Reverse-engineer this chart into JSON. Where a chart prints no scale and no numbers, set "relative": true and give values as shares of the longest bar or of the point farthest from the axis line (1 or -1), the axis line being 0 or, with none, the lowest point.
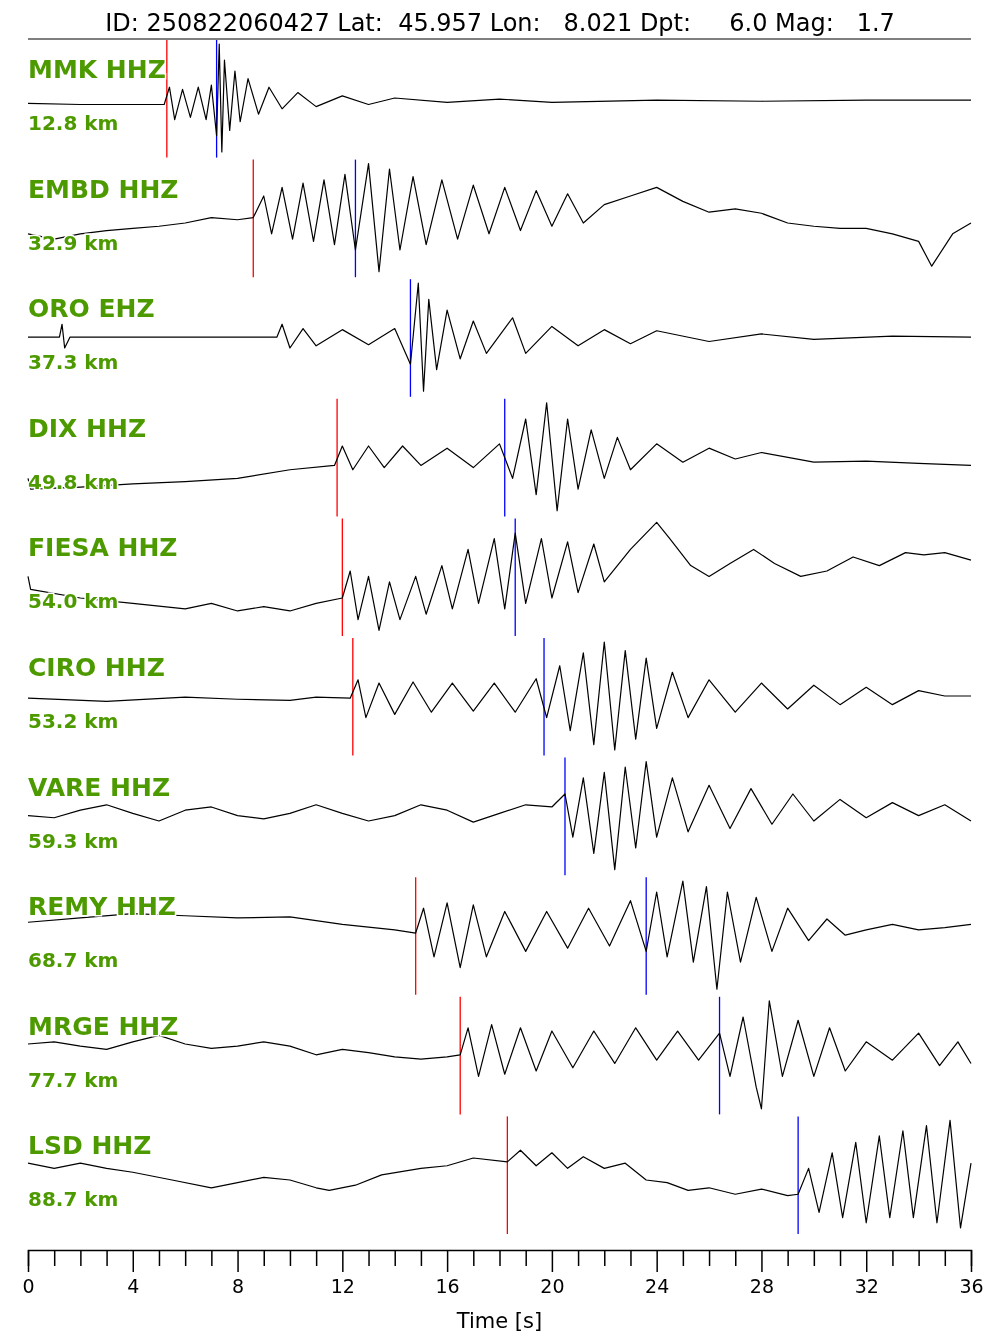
{
  "chart_data": [
    {
      "type": "line",
      "title": "ID: 250822060427 Lat:  45.957 Lon:   8.021 Dpt:     6.0 Mag:   1.7",
      "annotations": [
        "MMK HHZ",
        "12.8 km"
      ],
      "relative": true,
      "xlim": [
        0,
        36
      ],
      "tick_labels": false,
      "ref_lines": [
        {
          "axis": "x",
          "value": 5.3,
          "color": "#ff0000"
        },
        {
          "axis": "x",
          "value": 7.2,
          "color": "#0000ff"
        }
      ],
      "series": [
        {
          "color": "#000000",
          "x": [
            0,
            2,
            4,
            5.2,
            5.4,
            5.6,
            5.9,
            6.2,
            6.5,
            6.8,
            7.0,
            7.2,
            7.3,
            7.4,
            7.5,
            7.7,
            7.9,
            8.1,
            8.4,
            8.8,
            9.2,
            9.7,
            10.3,
            11,
            12,
            13,
            14,
            16,
            18,
            20,
            24,
            28,
            32,
            36
          ],
          "values": [
            0.45,
            0.44,
            0.44,
            0.44,
            0.6,
            0.3,
            0.58,
            0.32,
            0.6,
            0.3,
            0.62,
            0.15,
            1,
            0,
            0.85,
            0.2,
            0.75,
            0.28,
            0.68,
            0.35,
            0.6,
            0.4,
            0.55,
            0.42,
            0.52,
            0.44,
            0.5,
            0.46,
            0.49,
            0.46,
            0.48,
            0.47,
            0.48,
            0.48
          ]
        }
      ]
    },
    {
      "type": "line",
      "annotations": [
        "EMBD HHZ",
        "32.9 km"
      ],
      "relative": true,
      "xlim": [
        0,
        36
      ],
      "tick_labels": false,
      "ref_lines": [
        {
          "axis": "x",
          "value": 8.6,
          "color": "#ff0000"
        },
        {
          "axis": "x",
          "value": 12.5,
          "color": "#0000ff"
        }
      ],
      "series": [
        {
          "color": "#000000",
          "x": [
            0,
            1,
            2,
            3,
            4,
            5,
            6,
            7,
            8,
            8.6,
            9,
            9.3,
            9.7,
            10.1,
            10.5,
            10.9,
            11.3,
            11.7,
            12.1,
            12.5,
            13,
            13.4,
            13.8,
            14.2,
            14.7,
            15.2,
            15.8,
            16.4,
            17,
            17.6,
            18.2,
            18.8,
            19.4,
            20,
            20.6,
            21.2,
            22,
            23,
            24,
            25,
            26,
            27,
            28,
            29,
            30,
            31,
            32,
            33,
            34,
            34.5,
            35.3,
            36
          ],
          "values": [
            0.35,
            0.3,
            0.35,
            0.38,
            0.4,
            0.42,
            0.45,
            0.5,
            0.48,
            0.5,
            0.7,
            0.35,
            0.78,
            0.3,
            0.82,
            0.28,
            0.85,
            0.25,
            0.9,
            0.2,
            1,
            0,
            0.95,
            0.2,
            0.88,
            0.25,
            0.85,
            0.3,
            0.8,
            0.35,
            0.78,
            0.38,
            0.75,
            0.42,
            0.72,
            0.45,
            0.62,
            0.7,
            0.78,
            0.65,
            0.55,
            0.58,
            0.54,
            0.45,
            0.42,
            0.4,
            0.4,
            0.35,
            0.28,
            0.05,
            0.35,
            0.45
          ]
        }
      ]
    },
    {
      "type": "line",
      "annotations": [
        "ORO EHZ",
        "37.3 km"
      ],
      "relative": true,
      "xlim": [
        0,
        36
      ],
      "tick_labels": false,
      "ref_lines": [
        {
          "axis": "x",
          "value": 14.6,
          "color": "#0000ff"
        }
      ],
      "series": [
        {
          "color": "#000000",
          "x": [
            0,
            1.2,
            1.3,
            1.4,
            1.6,
            4,
            9.5,
            9.7,
            10,
            10.5,
            11,
            12,
            13,
            14,
            14.6,
            14.9,
            15.1,
            15.3,
            15.6,
            16,
            16.5,
            17,
            17.5,
            18.5,
            19,
            20,
            21,
            22,
            23,
            24,
            26,
            28,
            30,
            33,
            36
          ],
          "values": [
            0.5,
            0.5,
            0.62,
            0.4,
            0.5,
            0.5,
            0.5,
            0.62,
            0.4,
            0.58,
            0.42,
            0.57,
            0.43,
            0.58,
            0.25,
            1,
            0,
            0.85,
            0.2,
            0.75,
            0.3,
            0.65,
            0.35,
            0.68,
            0.35,
            0.6,
            0.42,
            0.57,
            0.44,
            0.56,
            0.46,
            0.53,
            0.48,
            0.51,
            0.5
          ]
        }
      ]
    },
    {
      "type": "line",
      "annotations": [
        "DIX HHZ",
        "49.8 km"
      ],
      "relative": true,
      "xlim": [
        0,
        36
      ],
      "tick_labels": false,
      "ref_lines": [
        {
          "axis": "x",
          "value": 11.8,
          "color": "#ff0000"
        },
        {
          "axis": "x",
          "value": 18.2,
          "color": "#0000ff"
        }
      ],
      "series": [
        {
          "color": "#000000",
          "x": [
            0,
            0.1,
            2,
            4,
            6,
            8,
            10,
            11.7,
            12,
            12.4,
            13,
            13.6,
            14.3,
            15,
            16,
            17,
            18,
            18.5,
            19,
            19.4,
            19.8,
            20.2,
            20.6,
            21,
            21.5,
            22,
            22.5,
            23,
            24,
            25,
            26,
            27,
            28,
            30,
            32,
            34,
            36
          ],
          "values": [
            0.3,
            0.2,
            0.22,
            0.25,
            0.27,
            0.3,
            0.38,
            0.42,
            0.6,
            0.38,
            0.6,
            0.4,
            0.6,
            0.42,
            0.58,
            0.4,
            0.62,
            0.3,
            0.85,
            0.15,
            1,
            0,
            0.85,
            0.2,
            0.75,
            0.3,
            0.68,
            0.38,
            0.62,
            0.45,
            0.58,
            0.48,
            0.54,
            0.45,
            0.46,
            0.44,
            0.42
          ]
        }
      ]
    },
    {
      "type": "line",
      "annotations": [
        "FIESA HHZ",
        "54.0 km"
      ],
      "relative": true,
      "xlim": [
        0,
        36
      ],
      "tick_labels": false,
      "ref_lines": [
        {
          "axis": "x",
          "value": 12,
          "color": "#ff0000"
        },
        {
          "axis": "x",
          "value": 18.6,
          "color": "#0000ff"
        }
      ],
      "series": [
        {
          "color": "#000000",
          "x": [
            0,
            0.1,
            2,
            4,
            6,
            7,
            8,
            9,
            10,
            11,
            12,
            12.3,
            12.6,
            13,
            13.4,
            13.8,
            14.2,
            14.8,
            15.2,
            15.8,
            16.2,
            16.8,
            17.2,
            17.8,
            18.2,
            18.6,
            19,
            19.6,
            20,
            20.6,
            21,
            21.6,
            22,
            23,
            24,
            24.5,
            25.3,
            26,
            26.8,
            27.7,
            28.5,
            29.5,
            30.5,
            31.5,
            32.5,
            33.5,
            34.2,
            35,
            36
          ],
          "values": [
            0.5,
            0.38,
            0.3,
            0.25,
            0.2,
            0.25,
            0.18,
            0.22,
            0.18,
            0.25,
            0.3,
            0.55,
            0.1,
            0.5,
            0,
            0.45,
            0.1,
            0.5,
            0.15,
            0.6,
            0.2,
            0.75,
            0.25,
            0.85,
            0.2,
            0.9,
            0.25,
            0.85,
            0.3,
            0.82,
            0.35,
            0.8,
            0.45,
            0.75,
            1,
            0.85,
            0.6,
            0.5,
            0.62,
            0.75,
            0.62,
            0.5,
            0.55,
            0.68,
            0.6,
            0.72,
            0.7,
            0.72,
            0.65
          ]
        }
      ]
    },
    {
      "type": "line",
      "annotations": [
        "CIRO HHZ",
        "53.2 km"
      ],
      "relative": true,
      "xlim": [
        0,
        36
      ],
      "tick_labels": false,
      "ref_lines": [
        {
          "axis": "x",
          "value": 12.4,
          "color": "#ff0000"
        },
        {
          "axis": "x",
          "value": 19.7,
          "color": "#0000ff"
        }
      ],
      "series": [
        {
          "color": "#000000",
          "x": [
            0,
            3,
            6,
            8,
            10,
            11,
            12.3,
            12.6,
            12.9,
            13.4,
            14,
            14.7,
            15.4,
            16.2,
            17,
            17.8,
            18.6,
            19.4,
            19.8,
            20.3,
            20.7,
            21.2,
            21.6,
            22,
            22.4,
            22.8,
            23.2,
            23.6,
            24,
            24.6,
            25.2,
            26,
            27,
            28,
            29,
            30,
            31,
            32,
            33,
            34,
            35,
            36
          ],
          "values": [
            0.48,
            0.45,
            0.49,
            0.47,
            0.46,
            0.49,
            0.48,
            0.65,
            0.3,
            0.62,
            0.33,
            0.63,
            0.35,
            0.62,
            0.36,
            0.62,
            0.35,
            0.66,
            0.3,
            0.78,
            0.18,
            0.9,
            0.05,
            1,
            0,
            0.92,
            0.1,
            0.85,
            0.2,
            0.72,
            0.3,
            0.65,
            0.35,
            0.62,
            0.38,
            0.6,
            0.42,
            0.58,
            0.42,
            0.55,
            0.5,
            0.5
          ]
        }
      ]
    },
    {
      "type": "line",
      "annotations": [
        "VARE HHZ",
        "59.3 km"
      ],
      "relative": true,
      "xlim": [
        0,
        36
      ],
      "tick_labels": false,
      "ref_lines": [
        {
          "axis": "x",
          "value": 20.5,
          "color": "#0000ff"
        }
      ],
      "series": [
        {
          "color": "#000000",
          "x": [
            0,
            1,
            2,
            3,
            4,
            5,
            6,
            7,
            8,
            9,
            10,
            11,
            12,
            13,
            14,
            15,
            16,
            17,
            18,
            19,
            20,
            20.5,
            20.8,
            21.2,
            21.6,
            22,
            22.4,
            22.8,
            23.2,
            23.6,
            24,
            24.6,
            25.2,
            26,
            26.8,
            27.6,
            28.4,
            29.2,
            30,
            31,
            32,
            33,
            34,
            35,
            36
          ],
          "values": [
            0.5,
            0.48,
            0.55,
            0.6,
            0.52,
            0.45,
            0.55,
            0.58,
            0.5,
            0.47,
            0.52,
            0.6,
            0.52,
            0.45,
            0.5,
            0.6,
            0.55,
            0.44,
            0.52,
            0.6,
            0.58,
            0.7,
            0.3,
            0.85,
            0.15,
            0.9,
            0,
            0.95,
            0.2,
            1,
            0.3,
            0.85,
            0.35,
            0.78,
            0.38,
            0.75,
            0.42,
            0.7,
            0.45,
            0.65,
            0.48,
            0.62,
            0.5,
            0.6,
            0.45
          ]
        }
      ]
    },
    {
      "type": "line",
      "annotations": [
        "REMY HHZ",
        "68.7 km"
      ],
      "relative": true,
      "xlim": [
        0,
        36
      ],
      "tick_labels": false,
      "ref_lines": [
        {
          "axis": "x",
          "value": 14.8,
          "color": "#ff0000"
        },
        {
          "axis": "x",
          "value": 23.6,
          "color": "#0000ff"
        }
      ],
      "series": [
        {
          "color": "#000000",
          "x": [
            0,
            2,
            4,
            6,
            8,
            10,
            12,
            14,
            14.8,
            15.1,
            15.5,
            16,
            16.5,
            17,
            17.5,
            18.2,
            19,
            19.8,
            20.6,
            21.4,
            22.2,
            23,
            23.6,
            24,
            24.4,
            25,
            25.4,
            25.9,
            26.3,
            26.7,
            27.2,
            27.8,
            28.4,
            29,
            29.8,
            30.5,
            31.2,
            32,
            33,
            34,
            35,
            36
          ],
          "values": [
            0.62,
            0.66,
            0.7,
            0.68,
            0.66,
            0.67,
            0.6,
            0.55,
            0.52,
            0.75,
            0.3,
            0.8,
            0.2,
            0.78,
            0.3,
            0.72,
            0.35,
            0.72,
            0.38,
            0.75,
            0.4,
            0.82,
            0.35,
            0.9,
            0.3,
            1,
            0.25,
            0.95,
            0,
            0.9,
            0.25,
            0.85,
            0.35,
            0.75,
            0.45,
            0.65,
            0.5,
            0.55,
            0.6,
            0.55,
            0.57,
            0.6
          ]
        }
      ]
    },
    {
      "type": "line",
      "annotations": [
        "MRGE HHZ",
        "77.7 km"
      ],
      "relative": true,
      "xlim": [
        0,
        36
      ],
      "tick_labels": false,
      "ref_lines": [
        {
          "axis": "x",
          "value": 16.5,
          "color": "#ff0000"
        },
        {
          "axis": "x",
          "value": 26.4,
          "color": "#0000ff"
        }
      ],
      "series": [
        {
          "color": "#000000",
          "x": [
            0,
            1,
            2,
            3,
            4,
            5,
            6,
            7,
            8,
            9,
            10,
            11,
            12,
            13,
            14,
            15,
            16,
            16.5,
            16.8,
            17.2,
            17.7,
            18.2,
            18.8,
            19.4,
            20,
            20.8,
            21.6,
            22.4,
            23.2,
            24,
            24.8,
            25.6,
            26.4,
            26.8,
            27.3,
            27.8,
            28,
            28.3,
            28.8,
            29.4,
            30,
            30.6,
            31.2,
            32,
            33,
            34,
            34.8,
            35.5,
            36
          ],
          "values": [
            0.6,
            0.62,
            0.58,
            0.55,
            0.62,
            0.68,
            0.6,
            0.56,
            0.58,
            0.62,
            0.58,
            0.5,
            0.55,
            0.52,
            0.48,
            0.46,
            0.48,
            0.5,
            0.75,
            0.3,
            0.78,
            0.32,
            0.75,
            0.35,
            0.72,
            0.38,
            0.72,
            0.42,
            0.75,
            0.45,
            0.72,
            0.45,
            0.7,
            0.3,
            0.85,
            0.2,
            0,
            1,
            0.3,
            0.82,
            0.3,
            0.75,
            0.35,
            0.62,
            0.45,
            0.7,
            0.4,
            0.62,
            0.42
          ]
        }
      ]
    },
    {
      "type": "line",
      "annotations": [
        "LSD HHZ",
        "88.7 km"
      ],
      "relative": true,
      "xlim": [
        0,
        36
      ],
      "tick_labels": "x",
      "xlabel": "Time [s]",
      "xticks": [
        0,
        {
          "value": 1,
          "label": null
        },
        {
          "value": 2,
          "label": null
        },
        {
          "value": 3,
          "label": null
        },
        4,
        {
          "value": 5,
          "label": null
        },
        {
          "value": 6,
          "label": null
        },
        {
          "value": 7,
          "label": null
        },
        8,
        {
          "value": 9,
          "label": null
        },
        {
          "value": 10,
          "label": null
        },
        {
          "value": 11,
          "label": null
        },
        12,
        {
          "value": 13,
          "label": null
        },
        {
          "value": 14,
          "label": null
        },
        {
          "value": 15,
          "label": null
        },
        16,
        {
          "value": 17,
          "label": null
        },
        {
          "value": 18,
          "label": null
        },
        {
          "value": 19,
          "label": null
        },
        20,
        {
          "value": 21,
          "label": null
        },
        {
          "value": 22,
          "label": null
        },
        {
          "value": 23,
          "label": null
        },
        24,
        {
          "value": 25,
          "label": null
        },
        {
          "value": 26,
          "label": null
        },
        {
          "value": 27,
          "label": null
        },
        28,
        {
          "value": 29,
          "label": null
        },
        {
          "value": 30,
          "label": null
        },
        {
          "value": 31,
          "label": null
        },
        32,
        {
          "value": 33,
          "label": null
        },
        {
          "value": 34,
          "label": null
        },
        {
          "value": 35,
          "label": null
        },
        36
      ],
      "ref_lines": [
        {
          "axis": "x",
          "value": 18.3,
          "color": "#ff0000"
        },
        {
          "axis": "x",
          "value": 29.4,
          "color": "#0000ff"
        }
      ],
      "series": [
        {
          "color": "#000000",
          "x": [
            0,
            1,
            2,
            3,
            4,
            5.5,
            7,
            8,
            9,
            10,
            11,
            11.5,
            12.5,
            13.5,
            15,
            16,
            17,
            18.3,
            18.8,
            19.4,
            20,
            20.6,
            21.2,
            22,
            22.8,
            23.6,
            24.4,
            25.2,
            26,
            27,
            28,
            29,
            29.4,
            29.8,
            30.2,
            30.7,
            31.1,
            31.6,
            32,
            32.5,
            32.9,
            33.4,
            33.8,
            34.3,
            34.7,
            35.2,
            35.6,
            36
          ],
          "values": [
            0.67,
            0.63,
            0.67,
            0.63,
            0.6,
            0.54,
            0.48,
            0.52,
            0.56,
            0.54,
            0.48,
            0.46,
            0.5,
            0.58,
            0.63,
            0.65,
            0.71,
            0.68,
            0.77,
            0.65,
            0.75,
            0.63,
            0.72,
            0.63,
            0.67,
            0.54,
            0.52,
            0.46,
            0.48,
            0.43,
            0.47,
            0.42,
            0.43,
            0.63,
            0.29,
            0.75,
            0.25,
            0.83,
            0.21,
            0.88,
            0.25,
            0.92,
            0.25,
            0.96,
            0.21,
            1,
            0.17,
            0.67
          ]
        }
      ]
    }
  ]
}
